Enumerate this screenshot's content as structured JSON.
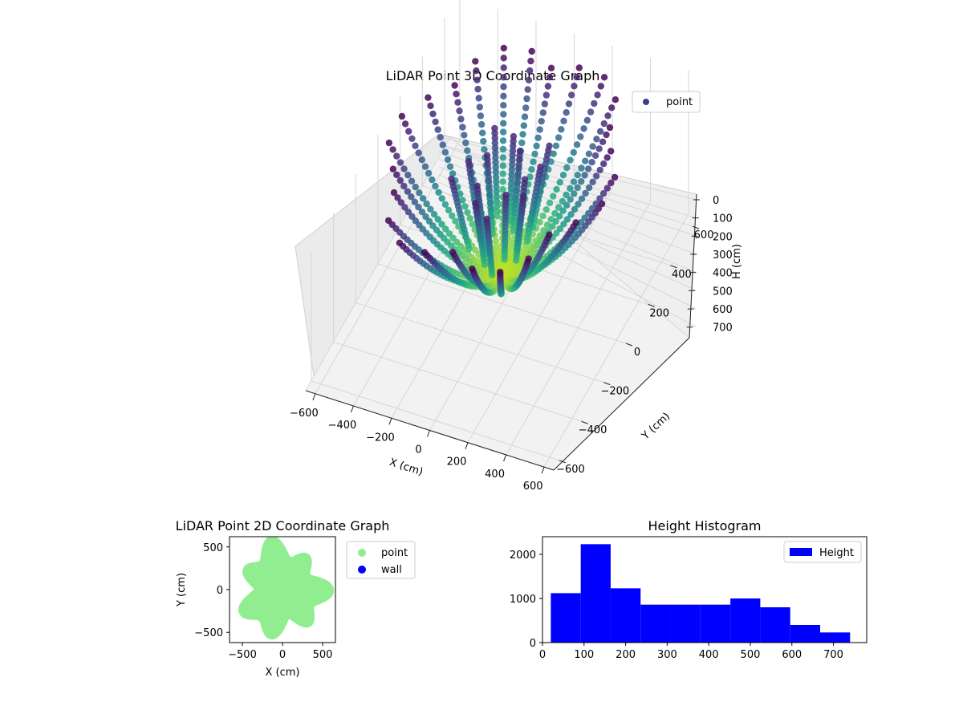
{
  "chart_data": [
    {
      "type": "scatter",
      "title": "LiDAR Point 3D Coordinate Graph",
      "xlabel": "X (cm)",
      "ylabel": "Y (cm)",
      "zlabel": "H (cm)",
      "xlim": [
        -650,
        650
      ],
      "ylim": [
        -650,
        650
      ],
      "zlim": [
        0,
        750
      ],
      "z_inverted": true,
      "x_ticks": [
        "−600",
        "−400",
        "−200",
        "0",
        "200",
        "400",
        "600"
      ],
      "y_ticks": [
        "−600",
        "−400",
        "−200",
        "0",
        "200",
        "400",
        "600"
      ],
      "z_ticks": [
        "0",
        "100",
        "200",
        "300",
        "400",
        "500",
        "600",
        "700"
      ],
      "legend": [
        {
          "name": "point",
          "color": "#3b3f8c"
        }
      ],
      "legend_position": "top-right",
      "colormap": "viridis",
      "grid": true
    },
    {
      "type": "scatter",
      "title": "LiDAR Point 2D Coordinate Graph",
      "xlabel": "X (cm)",
      "ylabel": "Y (cm)",
      "xlim": [
        -660,
        660
      ],
      "ylim": [
        -620,
        620
      ],
      "x_ticks": [
        "−500",
        "0",
        "500"
      ],
      "y_ticks": [
        "−500",
        "0",
        "500"
      ],
      "series": [
        {
          "name": "point",
          "color": "#90ee90"
        },
        {
          "name": "wall",
          "color": "#0000ff"
        }
      ],
      "legend_position": "outside-right",
      "grid": false
    },
    {
      "type": "bar",
      "title": "Height Histogram",
      "bins": [
        {
          "from": 20,
          "to": 92,
          "count": 1120
        },
        {
          "from": 92,
          "to": 164,
          "count": 2230
        },
        {
          "from": 164,
          "to": 236,
          "count": 1230
        },
        {
          "from": 236,
          "to": 308,
          "count": 860
        },
        {
          "from": 308,
          "to": 380,
          "count": 860
        },
        {
          "from": 380,
          "to": 452,
          "count": 860
        },
        {
          "from": 452,
          "to": 524,
          "count": 1000
        },
        {
          "from": 524,
          "to": 596,
          "count": 800
        },
        {
          "from": 596,
          "to": 668,
          "count": 400
        },
        {
          "from": 668,
          "to": 740,
          "count": 230
        }
      ],
      "xlim": [
        0,
        780
      ],
      "ylim": [
        0,
        2400
      ],
      "x_ticks": [
        "0",
        "100",
        "200",
        "300",
        "400",
        "500",
        "600",
        "700"
      ],
      "y_ticks": [
        "0",
        "1000",
        "2000"
      ],
      "legend": [
        {
          "name": "Height",
          "color": "#0000ff"
        }
      ],
      "legend_position": "top-right",
      "color": "#0000ff",
      "grid": false
    }
  ]
}
